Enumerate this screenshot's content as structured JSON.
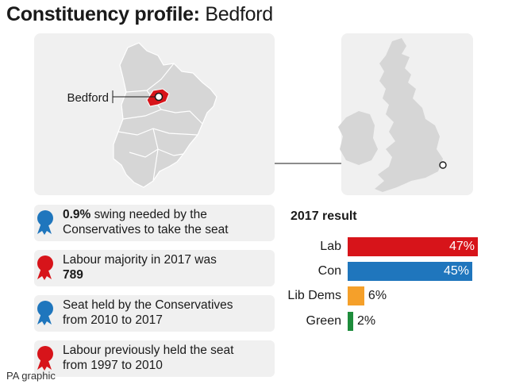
{
  "header": {
    "title_bold": "Constituency profile:",
    "title_place": "Bedford"
  },
  "map": {
    "constituency_label": "Bedford",
    "colors": {
      "region_fill": "#d6d6d6",
      "highlight": "#d7141a"
    }
  },
  "facts": [
    {
      "party_icon": "conservative-rosette-icon",
      "color": "#1f76bd",
      "bold": "0.9%",
      "line1": " swing needed by the",
      "line2": "Conservatives to take the seat",
      "line2_bold": ""
    },
    {
      "party_icon": "labour-rosette-icon",
      "color": "#d7141a",
      "bold": "",
      "line1": "Labour majority in 2017 was",
      "line2": "",
      "line2_bold": "789"
    },
    {
      "party_icon": "conservative-rosette-icon",
      "color": "#1f76bd",
      "bold": "",
      "line1": "Seat held by the Conservatives",
      "line2": "from 2010 to 2017",
      "line2_bold": ""
    },
    {
      "party_icon": "labour-rosette-icon",
      "color": "#d7141a",
      "bold": "",
      "line1": "Labour previously held the seat",
      "line2": "from 1997 to 2010",
      "line2_bold": ""
    }
  ],
  "chart_data": {
    "type": "bar",
    "orientation": "horizontal",
    "title": "2017 result",
    "categories": [
      "Lab",
      "Con",
      "Lib Dems",
      "Green"
    ],
    "values": [
      47,
      45,
      6,
      2
    ],
    "value_labels": [
      "47%",
      "45%",
      "6%",
      "2%"
    ],
    "unit": "%",
    "colors": [
      "#d7141a",
      "#1f76bd",
      "#f5a02a",
      "#1e8c3c"
    ],
    "xlim": [
      0,
      47
    ],
    "grid": false
  },
  "credit": "PA graphic"
}
